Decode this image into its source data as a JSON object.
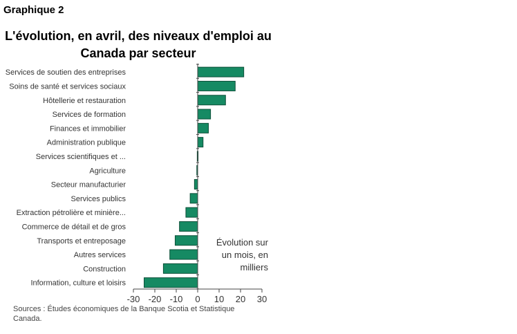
{
  "header": {
    "label": "Graphique 2"
  },
  "chart_data": {
    "type": "bar",
    "orientation": "horizontal",
    "title": "L'évolution, en avril, des niveaux d'emploi au Canada par secteur",
    "annotation": "Évolution sur un mois, en milliers",
    "categories": [
      "Services de soutien des entreprises",
      "Soins de santé et services sociaux",
      "Hôtellerie et restauration",
      "Services de formation",
      "Finances et immobilier",
      "Administration publique",
      "Services scientifiques et ...",
      "Agriculture",
      "Secteur manufacturier",
      "Services publics",
      "Extraction pétrolière et minière...",
      "Commerce de détail et de gros",
      "Transports et entreposage",
      "Autres services",
      "Construction",
      "Information, culture et loisirs"
    ],
    "values": [
      21.5,
      17.5,
      13,
      6,
      5,
      2.5,
      -0.2,
      -0.4,
      -1.5,
      -3.5,
      -5.5,
      -8.5,
      -10.5,
      -13,
      -16,
      -25
    ],
    "xlim": [
      -30,
      30
    ],
    "xticks": [
      "-30",
      "-20",
      "-10",
      "0",
      "10",
      "20",
      "30"
    ],
    "bar_color": "#168a63",
    "bar_stroke": "#0c4f38",
    "grid": false,
    "legend": "none"
  },
  "footer": {
    "sources": "Sources : Études économiques de la Banque Scotia et Statistique Canada."
  }
}
